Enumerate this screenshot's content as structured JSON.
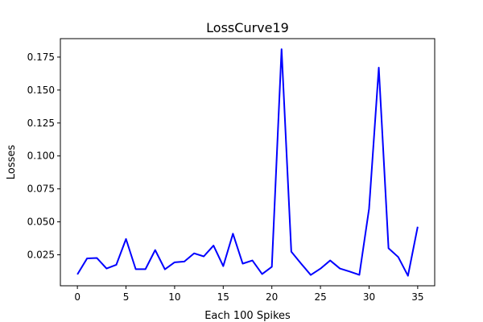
{
  "chart_data": {
    "type": "line",
    "title": "LossCurve19",
    "xlabel": "Each 100 Spikes",
    "ylabel": "Losses",
    "xlim": [
      -1.75,
      36.75
    ],
    "ylim": [
      0.0015,
      0.189
    ],
    "xticks": [
      0,
      5,
      10,
      15,
      20,
      25,
      30,
      35
    ],
    "yticks": [
      0.025,
      0.05,
      0.075,
      0.1,
      0.125,
      0.15,
      0.175
    ],
    "ytick_labels": [
      "0.025",
      "0.050",
      "0.075",
      "0.100",
      "0.125",
      "0.150",
      "0.175"
    ],
    "grid": false,
    "series": [
      {
        "color": "#0000ff",
        "x": [
          0,
          1,
          2,
          3,
          4,
          5,
          6,
          7,
          8,
          9,
          10,
          11,
          12,
          13,
          14,
          15,
          16,
          17,
          18,
          19,
          20,
          21,
          22,
          23,
          24,
          25,
          26,
          27,
          28,
          29,
          30,
          31,
          32,
          33,
          34,
          35
        ],
        "y": [
          0.0101,
          0.0223,
          0.0226,
          0.0146,
          0.0174,
          0.037,
          0.0141,
          0.0141,
          0.0286,
          0.014,
          0.0193,
          0.0199,
          0.0261,
          0.0238,
          0.032,
          0.0164,
          0.041,
          0.0183,
          0.0207,
          0.0104,
          0.0159,
          0.181,
          0.0274,
          0.0184,
          0.0097,
          0.0145,
          0.0207,
          0.0146,
          0.0123,
          0.0098,
          0.06,
          0.167,
          0.03,
          0.0233,
          0.0091,
          0.0463
        ]
      }
    ]
  }
}
